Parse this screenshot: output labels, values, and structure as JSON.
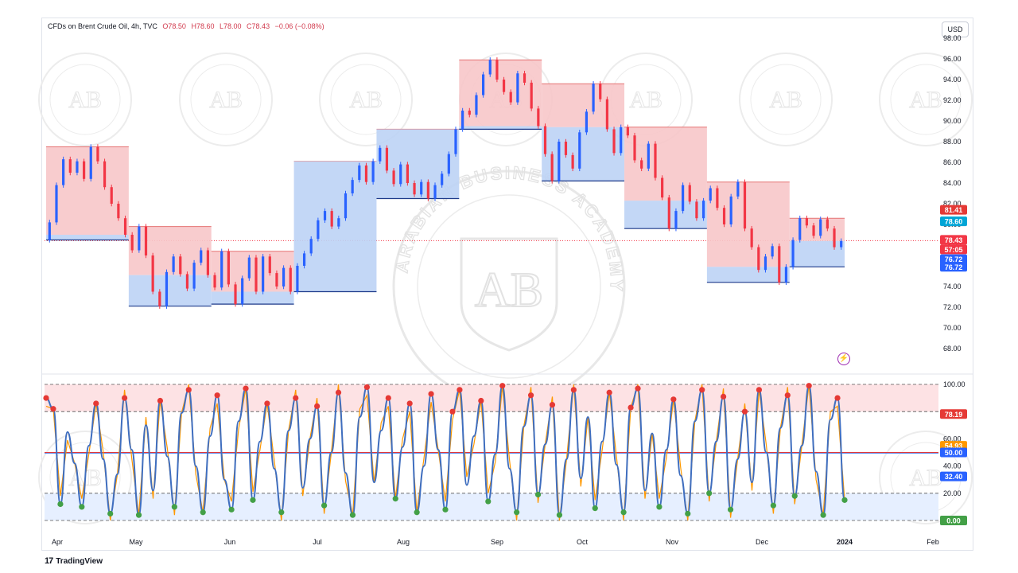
{
  "header": {
    "symbol": "CFDs on Brent Crude Oil, 4h, TVC",
    "open": "O78.50",
    "high": "H78.60",
    "low": "L78.00",
    "close": "C78.43",
    "change": "−0.06 (−0.08%)"
  },
  "currency_button": "USD",
  "watermark": {
    "initials": "AB",
    "arc_text": "ARABIAN BUSINESS ACADEMY"
  },
  "brand": {
    "logo": "17",
    "name": "TradingView"
  },
  "colors": {
    "up_candle": "#2962ff",
    "down_candle": "#f23645",
    "resistance_fill": "#f7c6c9",
    "support_fill": "#bcd3f5",
    "stoch_k": "#3f6ebf",
    "stoch_d": "#ff9800",
    "overbought_band": "#fde2e4",
    "oversold_band": "#e6efff",
    "dot_high": "#e53935",
    "dot_low": "#43a047"
  },
  "chart_data": [
    {
      "type": "line",
      "title": "CFDs on Brent Crude Oil, 4h, TVC",
      "ylim": [
        66,
        98
      ],
      "y_ticks": [
        "98.00",
        "96.00",
        "94.00",
        "92.00",
        "90.00",
        "88.00",
        "86.00",
        "84.00",
        "82.00",
        "80.00",
        "78.00",
        "76.00",
        "74.00",
        "72.00",
        "70.00",
        "68.00"
      ],
      "x_ticks": [
        "Apr",
        "May",
        "Jun",
        "Jul",
        "Aug",
        "Sep",
        "Oct",
        "Nov",
        "Dec",
        "2024",
        "Feb"
      ],
      "series": [
        {
          "values": [
            78.5,
            80.2,
            83.8,
            86.3,
            85.0,
            86.1,
            84.4,
            87.5,
            86.1,
            83.6,
            82.0,
            80.6,
            79.0,
            77.5,
            79.8,
            77.0,
            73.5,
            72.1,
            75.4,
            76.9,
            75.2,
            73.8,
            76.3,
            77.5,
            75.1,
            73.9,
            77.4,
            74.2,
            72.3,
            74.8,
            76.8,
            73.5,
            76.9,
            75.3,
            74.0,
            75.8,
            73.5,
            76.0,
            77.2,
            78.6,
            80.4,
            81.3,
            79.8,
            80.6,
            83.0,
            84.3,
            85.7,
            84.1,
            86.1,
            87.4,
            85.2,
            83.9,
            85.8,
            84.0,
            82.9,
            84.1,
            82.5,
            83.8,
            84.9,
            86.8,
            89.2,
            91.0,
            90.6,
            92.5,
            94.5,
            95.9,
            94.0,
            92.8,
            91.8,
            94.6,
            93.7,
            91.2,
            89.5,
            86.8,
            84.2,
            88.0,
            86.7,
            85.4,
            88.9,
            90.9,
            93.6,
            92.1,
            89.2,
            86.9,
            89.4,
            88.6,
            86.2,
            85.4,
            87.8,
            84.5,
            82.6,
            79.6,
            81.3,
            83.8,
            82.2,
            80.6,
            82.3,
            83.5,
            81.6,
            80.0,
            82.7,
            84.1,
            79.6,
            77.8,
            75.6,
            76.9,
            77.9,
            74.4,
            75.9,
            78.5,
            80.6,
            79.9,
            78.9,
            80.5,
            79.6,
            77.8,
            78.4
          ]
        }
      ],
      "price_labels": [
        {
          "value": "81.41",
          "role": "resistance-level"
        },
        {
          "value": "78.60",
          "role": "high"
        },
        {
          "value": "78.43",
          "role": "last-price"
        },
        {
          "value": "57:05",
          "role": "bar-countdown"
        },
        {
          "value": "76.72",
          "role": "support-level"
        },
        {
          "value": "76.72",
          "role": "support-level-2"
        }
      ]
    },
    {
      "type": "line",
      "ylim": [
        0,
        100
      ],
      "y_ticks": [
        "100.00",
        "60.00",
        "40.00",
        "20.00"
      ],
      "levels": [
        100,
        80,
        50,
        20,
        0
      ],
      "series": [
        {
          "values": [
            90,
            82,
            12,
            65,
            42,
            10,
            55,
            86,
            45,
            5,
            34,
            90,
            52,
            4,
            70,
            22,
            88,
            47,
            10,
            79,
            96,
            40,
            6,
            62,
            92,
            30,
            8,
            73,
            97,
            15,
            58,
            86,
            38,
            6,
            66,
            90,
            24,
            60,
            84,
            11,
            50,
            94,
            35,
            4,
            76,
            98,
            28,
            66,
            90,
            16,
            54,
            86,
            6,
            40,
            93,
            52,
            8,
            80,
            96,
            26,
            62,
            88,
            14,
            49,
            99,
            38,
            6,
            69,
            92,
            19,
            56,
            85,
            4,
            45,
            96,
            31,
            76,
            9,
            58,
            94,
            41,
            6,
            83,
            97,
            22,
            64,
            10,
            52,
            89,
            33,
            5,
            73,
            96,
            20,
            58,
            91,
            8,
            45,
            80,
            28,
            96,
            50,
            11,
            68,
            92,
            18,
            55,
            99,
            36,
            4,
            74,
            90,
            15
          ]
        }
      ],
      "price_labels": [
        {
          "value": "78.19",
          "role": "overbought"
        },
        {
          "value": "54.93",
          "role": "stoch-d"
        },
        {
          "value": "50.00",
          "role": "midline"
        },
        {
          "value": "32.40",
          "role": "stoch-k"
        },
        {
          "value": "0.00",
          "role": "floor"
        }
      ]
    }
  ]
}
